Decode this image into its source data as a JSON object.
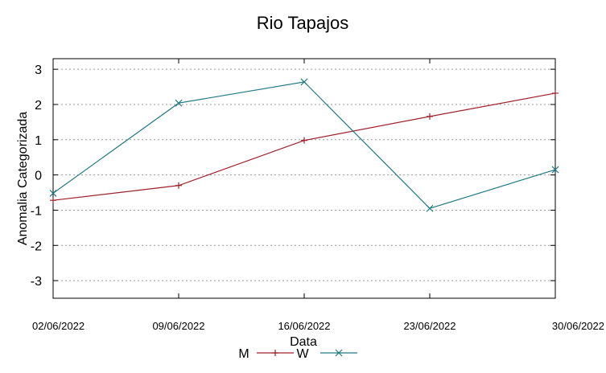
{
  "chart_data": {
    "type": "line",
    "title": "Rio Tapajos",
    "xlabel": "Data",
    "ylabel": "Anomalia Categorizada",
    "x": [
      "02/06/2022",
      "09/06/2022",
      "16/06/2022",
      "23/06/2022",
      "30/06/2022"
    ],
    "x_tick_labels": [
      "02/06/2022",
      "09/06/2022",
      "16/06/2022",
      "23/06/2022",
      "30/06/2022"
    ],
    "ylim": [
      -3.5,
      3.3
    ],
    "y_ticks": [
      3,
      2,
      1,
      0,
      -1,
      -2,
      -3
    ],
    "y_tick_labels": [
      "3",
      "2",
      "1",
      "0",
      "-1",
      "-2",
      "-3"
    ],
    "grid": true,
    "legend_position": "bottom-center",
    "series": [
      {
        "name": "M",
        "values": [
          -0.72,
          -0.3,
          0.98,
          1.66,
          2.32
        ],
        "color": "#a0202a",
        "marker": "plus"
      },
      {
        "name": "W",
        "values": [
          -0.52,
          2.04,
          2.64,
          -0.95,
          0.15
        ],
        "color": "#207a82",
        "marker": "cross"
      }
    ]
  }
}
